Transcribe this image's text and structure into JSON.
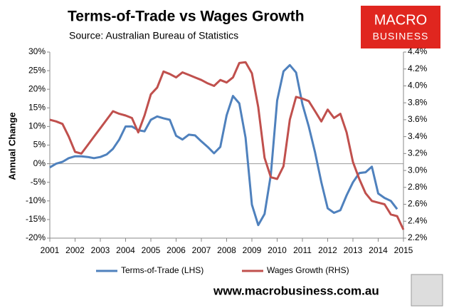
{
  "chart_data": {
    "type": "line",
    "title": "Terms-of-Trade vs Wages Growth",
    "subtitle": "Source: Australian Bureau of Statistics",
    "y_label": "Annual Change",
    "logo": {
      "line1": "MACRO",
      "line2": "BUSINESS"
    },
    "footer": "www.macrobusiness.com.au",
    "xlim": [
      2001,
      2015
    ],
    "xticks": [
      2001,
      2002,
      2003,
      2004,
      2005,
      2006,
      2007,
      2008,
      2009,
      2010,
      2011,
      2012,
      2013,
      2014,
      2015
    ],
    "ylim": [
      -20,
      30
    ],
    "yticks": [
      {
        "value": -20,
        "label": "-20%"
      },
      {
        "value": -15,
        "label": "-15%"
      },
      {
        "value": -10,
        "label": "-10%"
      },
      {
        "value": -5,
        "label": "-5%"
      },
      {
        "value": 0,
        "label": "0%"
      },
      {
        "value": 5,
        "label": "5%"
      },
      {
        "value": 10,
        "label": "10%"
      },
      {
        "value": 15,
        "label": "15%"
      },
      {
        "value": 20,
        "label": "20%"
      },
      {
        "value": 25,
        "label": "25%"
      },
      {
        "value": 30,
        "label": "30%"
      }
    ],
    "y2lim": [
      2.2,
      4.4
    ],
    "y2ticks": [
      {
        "value": 2.2,
        "label": "2.2%"
      },
      {
        "value": 2.4,
        "label": "2.4%"
      },
      {
        "value": 2.6,
        "label": "2.6%"
      },
      {
        "value": 2.8,
        "label": "2.8%"
      },
      {
        "value": 3.0,
        "label": "3.0%"
      },
      {
        "value": 3.2,
        "label": "3.2%"
      },
      {
        "value": 3.4,
        "label": "3.4%"
      },
      {
        "value": 3.6,
        "label": "3.6%"
      },
      {
        "value": 3.8,
        "label": "3.8%"
      },
      {
        "value": 4.0,
        "label": "4.0%"
      },
      {
        "value": 4.2,
        "label": "4.2%"
      },
      {
        "value": 4.4,
        "label": "4.4%"
      }
    ],
    "zero_line": true,
    "legend": "bottom",
    "series": [
      {
        "name": "Terms-of-Trade (LHS)",
        "color": "#4f81bd",
        "axis": "y",
        "x": [
          2001,
          2001.25,
          2001.5,
          2001.75,
          2002,
          2002.25,
          2002.5,
          2002.75,
          2003,
          2003.25,
          2003.5,
          2003.75,
          2004,
          2004.25,
          2004.5,
          2004.75,
          2005,
          2005.25,
          2005.5,
          2005.75,
          2006,
          2006.25,
          2006.5,
          2006.75,
          2007,
          2007.25,
          2007.5,
          2007.75,
          2008,
          2008.25,
          2008.5,
          2008.75,
          2009,
          2009.25,
          2009.5,
          2009.75,
          2010,
          2010.25,
          2010.5,
          2010.75,
          2011,
          2011.25,
          2011.5,
          2011.75,
          2012,
          2012.25,
          2012.5,
          2012.75,
          2013,
          2013.25,
          2013.5,
          2013.75,
          2014,
          2014.25,
          2014.5,
          2014.75
        ],
        "values": [
          -1,
          0,
          0.5,
          1.5,
          2,
          2,
          1.8,
          1.5,
          1.8,
          2.5,
          4,
          6.5,
          10,
          10,
          9,
          8.7,
          11.8,
          12.7,
          12.2,
          11.8,
          7.5,
          6.5,
          7.8,
          7.6,
          6,
          4.5,
          2.8,
          4.5,
          13,
          18.2,
          16.2,
          7,
          -11,
          -16.5,
          -13.5,
          -3,
          17,
          24.8,
          26.5,
          24.5,
          16,
          10,
          3,
          -5,
          -12,
          -13.2,
          -12.5,
          -8.5,
          -5,
          -2.5,
          -2.3,
          -0.8,
          -8,
          -9.2,
          -10,
          -12.2
        ]
      },
      {
        "name": "Wages Growth (RHS)",
        "color": "#c0504d",
        "axis": "y2",
        "x": [
          2001,
          2001.25,
          2001.5,
          2001.75,
          2002,
          2002.25,
          2002.5,
          2002.75,
          2003,
          2003.25,
          2003.5,
          2003.75,
          2004,
          2004.25,
          2004.5,
          2004.75,
          2005,
          2005.25,
          2005.5,
          2005.75,
          2006,
          2006.25,
          2006.5,
          2006.75,
          2007,
          2007.25,
          2007.5,
          2007.75,
          2008,
          2008.25,
          2008.5,
          2008.75,
          2009,
          2009.25,
          2009.5,
          2009.75,
          2010,
          2010.25,
          2010.5,
          2010.75,
          2011,
          2011.25,
          2011.5,
          2011.75,
          2012,
          2012.25,
          2012.5,
          2012.75,
          2013,
          2013.25,
          2013.5,
          2013.75,
          2014,
          2014.25,
          2014.5,
          2014.75,
          2015
        ],
        "values": [
          3.6,
          3.58,
          3.55,
          3.4,
          3.22,
          3.2,
          3.3,
          3.4,
          3.5,
          3.6,
          3.7,
          3.67,
          3.65,
          3.62,
          3.45,
          3.65,
          3.9,
          3.98,
          4.17,
          4.14,
          4.1,
          4.16,
          4.13,
          4.1,
          4.07,
          4.03,
          4.0,
          4.07,
          4.04,
          4.1,
          4.27,
          4.28,
          4.15,
          3.75,
          3.15,
          2.92,
          2.9,
          3.05,
          3.6,
          3.87,
          3.85,
          3.82,
          3.7,
          3.58,
          3.72,
          3.62,
          3.67,
          3.45,
          3.1,
          2.9,
          2.73,
          2.64,
          2.62,
          2.6,
          2.48,
          2.46,
          2.3
        ]
      }
    ]
  }
}
